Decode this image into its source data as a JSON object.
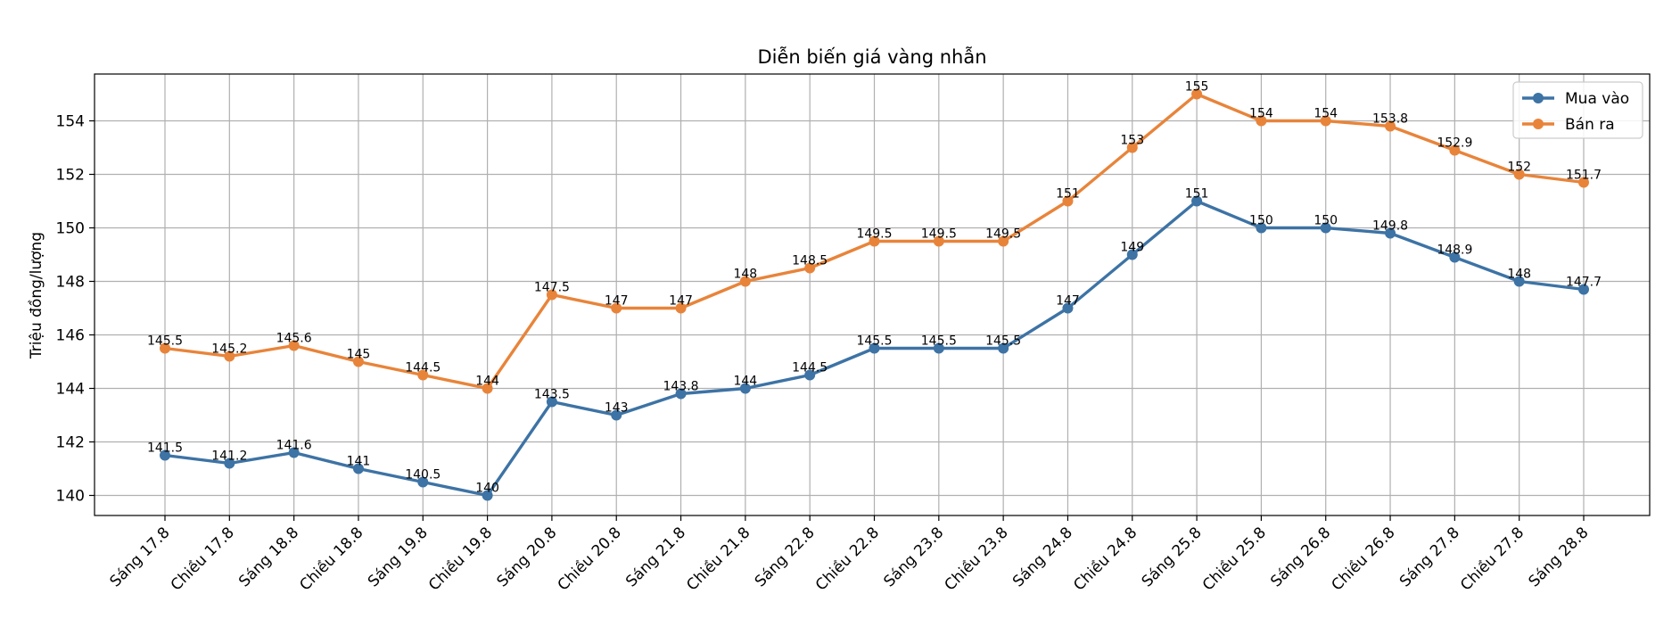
{
  "chart_data": {
    "type": "line",
    "title": "Diễn biến giá vàng nhẫn",
    "xlabel": "",
    "ylabel": "Triệu đồng/lượng",
    "categories": [
      "Sáng 17.8",
      "Chiều 17.8",
      "Sáng 18.8",
      "Chiều 18.8",
      "Sáng 19.8",
      "Chiều 19.8",
      "Sáng 20.8",
      "Chiều 20.8",
      "Sáng 21.8",
      "Chiều 21.8",
      "Sáng 22.8",
      "Chiều 22.8",
      "Sáng 23.8",
      "Chiều 23.8",
      "Sáng 24.8",
      "Chiều 24.8",
      "Sáng 25.8",
      "Chiều 25.8",
      "Sáng 26.8",
      "Chiều 26.8",
      "Sáng 27.8",
      "Chiều 27.8",
      "Sáng 28.8"
    ],
    "series": [
      {
        "name": "Mua vào",
        "color": "#3d73a5",
        "values": [
          141.5,
          141.2,
          141.6,
          141,
          140.5,
          140,
          143.5,
          143,
          143.8,
          144,
          144.5,
          145.5,
          145.5,
          145.5,
          147,
          149,
          151,
          150,
          150,
          149.8,
          148.9,
          148,
          147.7
        ],
        "labels": [
          "141.5",
          "141.2",
          "141.6",
          "141",
          "140.5",
          "140",
          "143.5",
          "143",
          "143.8",
          "144",
          "144.5",
          "145.5",
          "145.5",
          "145.5",
          "147",
          "149",
          "151",
          "150",
          "150",
          "149.8",
          "148.9",
          "148",
          "147.7"
        ]
      },
      {
        "name": "Bán ra",
        "color": "#e8843a",
        "values": [
          145.5,
          145.2,
          145.6,
          145,
          144.5,
          144,
          147.5,
          147,
          147,
          148,
          148.5,
          149.5,
          149.5,
          149.5,
          151,
          153,
          155,
          154,
          154,
          153.8,
          152.9,
          152,
          151.7
        ],
        "labels": [
          "145.5",
          "145.2",
          "145.6",
          "145",
          "144.5",
          "144",
          "147.5",
          "147",
          "147",
          "148",
          "148.5",
          "149.5",
          "149.5",
          "149.5",
          "151",
          "153",
          "155",
          "154",
          "154",
          "153.8",
          "152.9",
          "152",
          "151.7"
        ]
      }
    ],
    "yticks": [
      140,
      142,
      144,
      146,
      148,
      150,
      152,
      154
    ],
    "ytick_labels": [
      "140",
      "142",
      "144",
      "146",
      "148",
      "150",
      "152",
      "154"
    ],
    "ylim": [
      139.25,
      155.75
    ],
    "grid": true,
    "legend_position": "top-right"
  }
}
